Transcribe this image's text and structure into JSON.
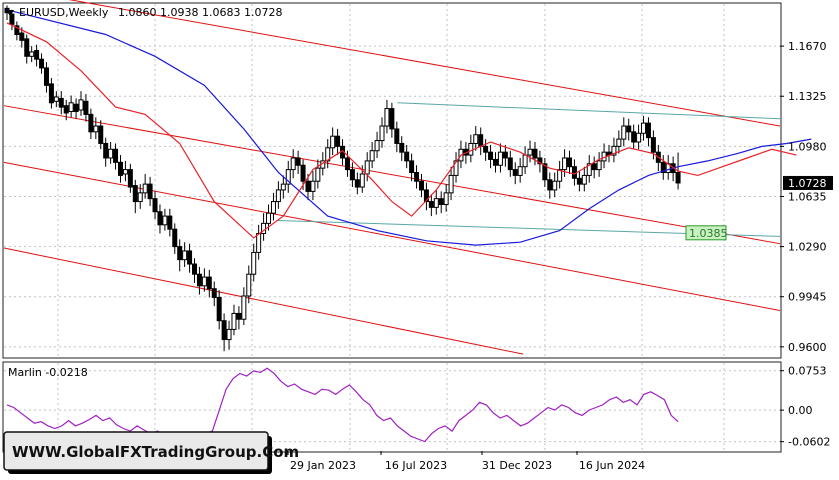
{
  "header": {
    "symbol": "EURUSD,Weekly",
    "ohlc": "1.0860 1.0938 1.0683 1.0728"
  },
  "price_labels": {
    "current": "1.0728",
    "support": "1.0385"
  },
  "indicator": {
    "label": "Marlin -0.0218"
  },
  "watermark": "WWW.GlobalFXTradingGroup.Com",
  "colors": {
    "candle": "#000000",
    "ma_blue": "#1a1adc",
    "ma_red": "#e8222a",
    "channel_red": "#e01010",
    "horizontal_teal": "#5aa6a6",
    "oscillator": "#a020c0",
    "grid": "#bcc4cc",
    "support_label_bg": "#c8f0c0",
    "support_label_border": "#2a9a2a",
    "current_label_bg": "#000000"
  },
  "chart_data": [
    {
      "type": "candlestick",
      "title": "EURUSD,Weekly",
      "y_ticks": [
        "1.1670",
        "1.1325",
        "1.0980",
        "1.0635",
        "1.0290",
        "0.9945",
        "0.9600"
      ],
      "ylim": [
        0.953,
        1.196
      ],
      "x_ticks": [
        "29 Jan 2023",
        "16 Jul 2023",
        "31 Dec 2023",
        "16 Jun 2024"
      ],
      "grid": true,
      "last_close": 1.0728,
      "support_level": 1.0385,
      "series": [
        {
          "kind": "ma",
          "color": "blue",
          "points": [
            [
              1.192,
              0
            ],
            [
              1.175,
              20
            ],
            [
              1.16,
              30
            ],
            [
              1.14,
              40
            ],
            [
              1.11,
              48
            ],
            [
              1.08,
              55
            ],
            [
              1.05,
              65
            ],
            [
              1.04,
              75
            ],
            [
              1.033,
              85
            ],
            [
              1.03,
              95
            ],
            [
              1.032,
              104
            ],
            [
              1.04,
              112
            ],
            [
              1.055,
              118
            ],
            [
              1.068,
              124
            ],
            [
              1.078,
              130
            ],
            [
              1.084,
              136
            ],
            [
              1.088,
              142
            ],
            [
              1.093,
              148
            ],
            [
              1.098,
              153
            ],
            [
              1.1,
              158
            ],
            [
              1.103,
              163
            ]
          ]
        },
        {
          "kind": "ma",
          "color": "red",
          "points": [
            [
              1.183,
              0
            ],
            [
              1.17,
              8
            ],
            [
              1.15,
              15
            ],
            [
              1.125,
              22
            ],
            [
              1.12,
              28
            ],
            [
              1.1,
              35
            ],
            [
              1.06,
              42
            ],
            [
              1.035,
              50
            ],
            [
              1.05,
              56
            ],
            [
              1.082,
              62
            ],
            [
              1.095,
              68
            ],
            [
              1.075,
              74
            ],
            [
              1.06,
              78
            ],
            [
              1.05,
              82
            ],
            [
              1.068,
              87
            ],
            [
              1.092,
              92
            ],
            [
              1.101,
              98
            ],
            [
              1.094,
              104
            ],
            [
              1.083,
              110
            ],
            [
              1.079,
              115
            ],
            [
              1.089,
              120
            ],
            [
              1.097,
              126
            ],
            [
              1.093,
              131
            ],
            [
              1.081,
              136
            ],
            [
              1.078,
              140
            ],
            [
              1.084,
              145
            ],
            [
              1.09,
              150
            ],
            [
              1.096,
              155
            ],
            [
              1.092,
              160
            ]
          ]
        }
      ],
      "candles": [
        [
          1.193,
          1.19,
          1.195,
          1.185
        ],
        [
          1.189,
          1.182,
          1.192,
          1.178
        ],
        [
          1.181,
          1.175,
          1.184,
          1.171
        ],
        [
          1.176,
          1.171,
          1.18,
          1.166
        ],
        [
          1.172,
          1.16,
          1.175,
          1.155
        ],
        [
          1.16,
          1.163,
          1.167,
          1.156
        ],
        [
          1.164,
          1.158,
          1.168,
          1.153
        ],
        [
          1.158,
          1.152,
          1.162,
          1.148
        ],
        [
          1.152,
          1.14,
          1.156,
          1.135
        ],
        [
          1.141,
          1.128,
          1.145,
          1.124
        ],
        [
          1.129,
          1.132,
          1.136,
          1.125
        ],
        [
          1.131,
          1.125,
          1.136,
          1.12
        ],
        [
          1.126,
          1.121,
          1.13,
          1.116
        ],
        [
          1.122,
          1.128,
          1.133,
          1.118
        ],
        [
          1.127,
          1.122,
          1.131,
          1.117
        ],
        [
          1.123,
          1.13,
          1.136,
          1.119
        ],
        [
          1.129,
          1.12,
          1.134,
          1.115
        ],
        [
          1.12,
          1.108,
          1.124,
          1.103
        ],
        [
          1.108,
          1.112,
          1.118,
          1.103
        ],
        [
          1.112,
          1.1,
          1.116,
          1.096
        ],
        [
          1.1,
          1.09,
          1.104,
          1.084
        ],
        [
          1.09,
          1.096,
          1.101,
          1.086
        ],
        [
          1.096,
          1.087,
          1.1,
          1.082
        ],
        [
          1.087,
          1.078,
          1.092,
          1.073
        ],
        [
          1.079,
          1.082,
          1.088,
          1.074
        ],
        [
          1.082,
          1.07,
          1.086,
          1.066
        ],
        [
          1.071,
          1.06,
          1.075,
          1.052
        ],
        [
          1.06,
          1.066,
          1.072,
          1.055
        ],
        [
          1.066,
          1.072,
          1.079,
          1.062
        ],
        [
          1.072,
          1.062,
          1.077,
          1.057
        ],
        [
          1.062,
          1.053,
          1.067,
          1.048
        ],
        [
          1.053,
          1.044,
          1.058,
          1.038
        ],
        [
          1.044,
          1.05,
          1.055,
          1.04
        ],
        [
          1.05,
          1.041,
          1.055,
          1.036
        ],
        [
          1.041,
          1.029,
          1.045,
          1.024
        ],
        [
          1.029,
          1.02,
          1.034,
          1.012
        ],
        [
          1.02,
          1.026,
          1.032,
          1.015
        ],
        [
          1.026,
          1.017,
          1.031,
          1.011
        ],
        [
          1.017,
          1.01,
          1.021,
          1.004
        ],
        [
          1.01,
          1.002,
          1.015,
          0.996
        ],
        [
          1.002,
          1.008,
          1.014,
          0.998
        ],
        [
          1.008,
          1.0,
          1.013,
          0.994
        ],
        [
          1.0,
          0.994,
          1.005,
          0.988
        ],
        [
          0.994,
          0.978,
          0.999,
          0.972
        ],
        [
          0.978,
          0.965,
          0.983,
          0.957
        ],
        [
          0.965,
          0.972,
          0.978,
          0.958
        ],
        [
          0.972,
          0.983,
          0.989,
          0.968
        ],
        [
          0.983,
          0.979,
          0.988,
          0.972
        ],
        [
          0.979,
          0.995,
          1.001,
          0.975
        ],
        [
          0.995,
          1.01,
          1.016,
          0.99
        ],
        [
          1.01,
          1.025,
          1.031,
          1.005
        ],
        [
          1.025,
          1.038,
          1.044,
          1.02
        ],
        [
          1.038,
          1.045,
          1.052,
          1.033
        ],
        [
          1.045,
          1.052,
          1.058,
          1.04
        ],
        [
          1.052,
          1.06,
          1.066,
          1.047
        ],
        [
          1.06,
          1.068,
          1.074,
          1.055
        ],
        [
          1.068,
          1.072,
          1.078,
          1.062
        ],
        [
          1.072,
          1.082,
          1.088,
          1.066
        ],
        [
          1.082,
          1.09,
          1.096,
          1.076
        ],
        [
          1.09,
          1.085,
          1.095,
          1.079
        ],
        [
          1.085,
          1.074,
          1.089,
          1.068
        ],
        [
          1.074,
          1.067,
          1.079,
          1.061
        ],
        [
          1.067,
          1.074,
          1.081,
          1.061
        ],
        [
          1.074,
          1.083,
          1.089,
          1.069
        ],
        [
          1.083,
          1.088,
          1.094,
          1.078
        ],
        [
          1.088,
          1.097,
          1.103,
          1.083
        ],
        [
          1.097,
          1.105,
          1.111,
          1.092
        ],
        [
          1.105,
          1.098,
          1.11,
          1.092
        ],
        [
          1.098,
          1.09,
          1.103,
          1.085
        ],
        [
          1.09,
          1.082,
          1.095,
          1.077
        ],
        [
          1.082,
          1.075,
          1.087,
          1.07
        ],
        [
          1.075,
          1.07,
          1.08,
          1.065
        ],
        [
          1.07,
          1.079,
          1.085,
          1.066
        ],
        [
          1.079,
          1.088,
          1.094,
          1.074
        ],
        [
          1.088,
          1.095,
          1.101,
          1.083
        ],
        [
          1.095,
          1.102,
          1.108,
          1.09
        ],
        [
          1.102,
          1.112,
          1.118,
          1.097
        ],
        [
          1.112,
          1.124,
          1.13,
          1.107
        ],
        [
          1.124,
          1.11,
          1.128,
          1.104
        ],
        [
          1.11,
          1.1,
          1.115,
          1.094
        ],
        [
          1.1,
          1.094,
          1.105,
          1.088
        ],
        [
          1.094,
          1.088,
          1.099,
          1.083
        ],
        [
          1.088,
          1.08,
          1.093,
          1.074
        ],
        [
          1.08,
          1.074,
          1.085,
          1.069
        ],
        [
          1.074,
          1.068,
          1.079,
          1.063
        ],
        [
          1.068,
          1.06,
          1.073,
          1.054
        ],
        [
          1.06,
          1.056,
          1.065,
          1.05
        ],
        [
          1.056,
          1.062,
          1.068,
          1.051
        ],
        [
          1.062,
          1.058,
          1.067,
          1.052
        ],
        [
          1.058,
          1.066,
          1.072,
          1.053
        ],
        [
          1.066,
          1.078,
          1.084,
          1.061
        ],
        [
          1.078,
          1.088,
          1.094,
          1.073
        ],
        [
          1.088,
          1.096,
          1.102,
          1.083
        ],
        [
          1.096,
          1.092,
          1.101,
          1.086
        ],
        [
          1.092,
          1.1,
          1.106,
          1.087
        ],
        [
          1.1,
          1.106,
          1.112,
          1.095
        ],
        [
          1.106,
          1.098,
          1.111,
          1.092
        ],
        [
          1.098,
          1.094,
          1.103,
          1.088
        ],
        [
          1.094,
          1.089,
          1.099,
          1.083
        ],
        [
          1.089,
          1.085,
          1.094,
          1.08
        ],
        [
          1.085,
          1.094,
          1.1,
          1.08
        ],
        [
          1.094,
          1.09,
          1.099,
          1.084
        ],
        [
          1.09,
          1.082,
          1.095,
          1.077
        ],
        [
          1.082,
          1.078,
          1.087,
          1.072
        ],
        [
          1.078,
          1.084,
          1.09,
          1.073
        ],
        [
          1.084,
          1.092,
          1.098,
          1.079
        ],
        [
          1.092,
          1.096,
          1.102,
          1.087
        ],
        [
          1.096,
          1.09,
          1.101,
          1.085
        ],
        [
          1.09,
          1.086,
          1.095,
          1.08
        ],
        [
          1.086,
          1.075,
          1.09,
          1.07
        ],
        [
          1.075,
          1.068,
          1.08,
          1.062
        ],
        [
          1.068,
          1.074,
          1.08,
          1.063
        ],
        [
          1.074,
          1.082,
          1.088,
          1.069
        ],
        [
          1.082,
          1.09,
          1.096,
          1.077
        ],
        [
          1.09,
          1.084,
          1.095,
          1.079
        ],
        [
          1.084,
          1.076,
          1.089,
          1.071
        ],
        [
          1.076,
          1.072,
          1.081,
          1.067
        ],
        [
          1.072,
          1.078,
          1.084,
          1.067
        ],
        [
          1.078,
          1.086,
          1.092,
          1.073
        ],
        [
          1.086,
          1.082,
          1.091,
          1.076
        ],
        [
          1.082,
          1.088,
          1.094,
          1.077
        ],
        [
          1.088,
          1.094,
          1.1,
          1.083
        ],
        [
          1.094,
          1.092,
          1.099,
          1.087
        ],
        [
          1.092,
          1.098,
          1.104,
          1.087
        ],
        [
          1.098,
          1.103,
          1.109,
          1.093
        ],
        [
          1.103,
          1.112,
          1.118,
          1.098
        ],
        [
          1.112,
          1.108,
          1.117,
          1.102
        ],
        [
          1.108,
          1.101,
          1.113,
          1.096
        ],
        [
          1.101,
          1.107,
          1.113,
          1.096
        ],
        [
          1.107,
          1.114,
          1.119,
          1.102
        ],
        [
          1.114,
          1.104,
          1.118,
          1.098
        ],
        [
          1.104,
          1.094,
          1.109,
          1.089
        ],
        [
          1.094,
          1.087,
          1.099,
          1.081
        ],
        [
          1.087,
          1.08,
          1.092,
          1.075
        ],
        [
          1.08,
          1.086,
          1.092,
          1.075
        ],
        [
          1.086,
          1.08,
          1.091,
          1.074
        ],
        [
          1.08,
          1.0728,
          1.0938,
          1.0683
        ]
      ],
      "channel_lines": [
        {
          "kind": "red",
          "from": [
            0,
            1.207
          ],
          "to": [
            142,
            1.112
          ]
        },
        {
          "kind": "red",
          "from": [
            0,
            1.126
          ],
          "to": [
            142,
            1.031
          ]
        },
        {
          "kind": "red",
          "from": [
            0,
            1.087
          ],
          "to": [
            142,
            0.985
          ]
        },
        {
          "kind": "red",
          "from": [
            0,
            1.028
          ],
          "to": [
            95,
            0.955
          ]
        },
        {
          "kind": "teal",
          "from": [
            72,
            1.128
          ],
          "to": [
            142,
            1.117
          ]
        },
        {
          "kind": "teal",
          "from": [
            50,
            1.047
          ],
          "to": [
            142,
            1.036
          ]
        }
      ]
    },
    {
      "type": "line",
      "title": "Marlin -0.0218",
      "y_ticks": [
        "0.0753",
        "0.00",
        "-0.0602"
      ],
      "ylim": [
        -0.078,
        0.09
      ],
      "last_value": -0.0218,
      "values": [
        0.01,
        0.005,
        -0.005,
        -0.015,
        -0.025,
        -0.022,
        -0.03,
        -0.035,
        -0.03,
        -0.02,
        -0.03,
        -0.025,
        -0.018,
        -0.01,
        -0.02,
        -0.015,
        -0.028,
        -0.035,
        -0.04,
        -0.03,
        -0.038,
        -0.045,
        -0.04,
        -0.05,
        -0.055,
        -0.048,
        -0.055,
        -0.06,
        -0.052,
        -0.045,
        -0.04,
        0.0,
        0.04,
        0.06,
        0.07,
        0.065,
        0.075,
        0.072,
        0.08,
        0.07,
        0.055,
        0.045,
        0.05,
        0.04,
        0.035,
        0.03,
        0.04,
        0.038,
        0.03,
        0.04,
        0.048,
        0.035,
        0.02,
        0.01,
        -0.01,
        -0.02,
        -0.015,
        -0.03,
        -0.04,
        -0.05,
        -0.055,
        -0.06,
        -0.045,
        -0.035,
        -0.03,
        -0.04,
        -0.02,
        -0.01,
        0.0,
        0.015,
        0.01,
        -0.005,
        -0.015,
        -0.01,
        -0.02,
        -0.03,
        -0.025,
        -0.015,
        -0.005,
        0.005,
        0.0,
        0.01,
        0.005,
        -0.005,
        -0.01,
        0.0,
        0.005,
        0.01,
        0.02,
        0.025,
        0.015,
        0.02,
        0.01,
        0.03,
        0.035,
        0.028,
        0.02,
        -0.01,
        -0.022
      ]
    }
  ]
}
